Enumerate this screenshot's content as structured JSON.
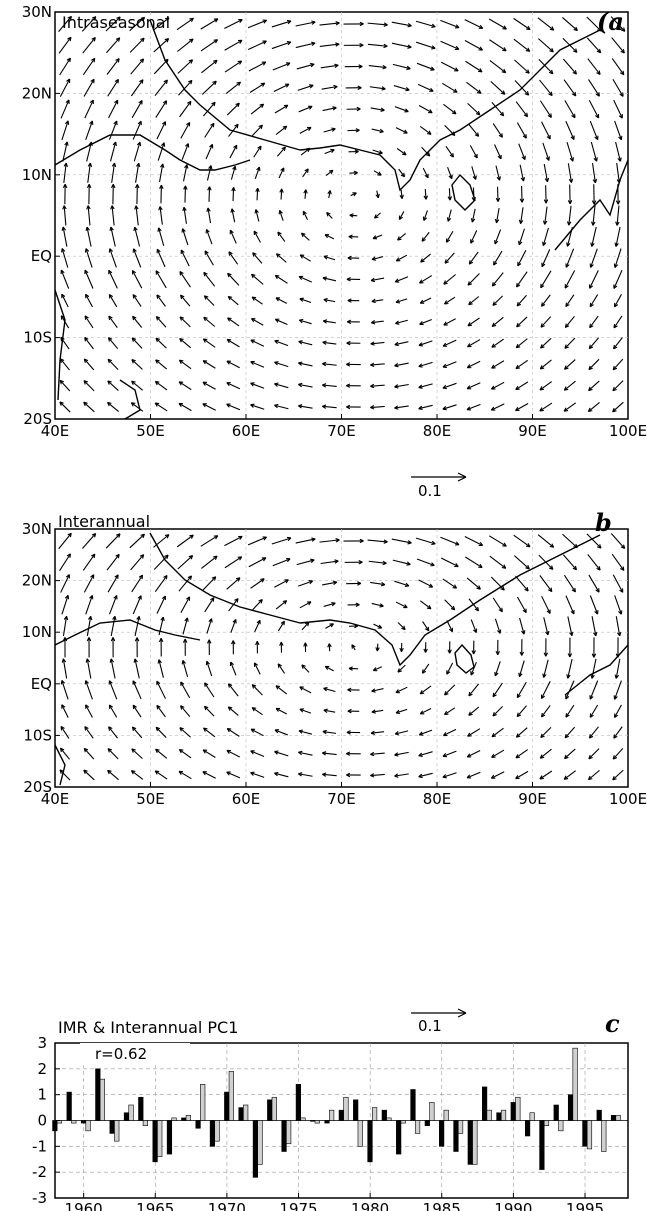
{
  "chart_data": [
    {
      "type": "vector-map",
      "panel_label": "(a",
      "title": "Intraseasonal",
      "x_ticks": [
        "40E",
        "50E",
        "60E",
        "70E",
        "80E",
        "90E",
        "100E"
      ],
      "y_ticks": [
        "30N",
        "20N",
        "10N",
        "EQ",
        "10S",
        "20S"
      ],
      "xlim": [
        40,
        100
      ],
      "ylim": [
        -20,
        30
      ],
      "reference_vector_label": "0.1"
    },
    {
      "type": "vector-map",
      "panel_label": "b",
      "title": "Interannual",
      "x_ticks": [
        "40E",
        "50E",
        "60E",
        "70E",
        "80E",
        "90E",
        "100E"
      ],
      "y_ticks": [
        "30N",
        "20N",
        "10N",
        "EQ",
        "10S",
        "20S"
      ],
      "xlim": [
        40,
        100
      ],
      "ylim": [
        -20,
        30
      ],
      "reference_vector_label": "0.1"
    },
    {
      "type": "bar",
      "panel_label": "c",
      "title": "IMR & Interannual PC1",
      "annotation": "r=0.62",
      "x_ticks": [
        "1960",
        "1965",
        "1970",
        "1975",
        "1980",
        "1985",
        "1990",
        "1995"
      ],
      "y_ticks": [
        "3",
        "2",
        "1",
        "0",
        "-1",
        "-2",
        "-3"
      ],
      "ylim": [
        -3,
        3
      ],
      "xlim": [
        1958,
        1998
      ],
      "years": [
        1958,
        1959,
        1960,
        1961,
        1962,
        1963,
        1964,
        1965,
        1966,
        1967,
        1968,
        1969,
        1970,
        1971,
        1972,
        1973,
        1974,
        1975,
        1976,
        1977,
        1978,
        1979,
        1980,
        1981,
        1982,
        1983,
        1984,
        1985,
        1986,
        1987,
        1988,
        1989,
        1990,
        1991,
        1992,
        1993,
        1994,
        1995,
        1996,
        1997
      ],
      "series": [
        {
          "values": [
            -0.4,
            1.1,
            -0.1,
            2.0,
            -0.5,
            0.3,
            0.9,
            -1.6,
            -1.3,
            0.1,
            -0.3,
            -1.0,
            1.1,
            0.5,
            -2.2,
            0.8,
            -1.2,
            1.4,
            0.0,
            -0.1,
            0.4,
            0.8,
            -1.6,
            0.4,
            -1.3,
            1.2,
            -0.2,
            -1.0,
            -1.2,
            -1.7,
            1.3,
            0.3,
            0.7,
            -0.6,
            -1.9,
            0.6,
            1.0,
            -1.0,
            0.4,
            0.2
          ]
        },
        {
          "values": [
            -0.1,
            -0.1,
            -0.4,
            1.6,
            -0.8,
            0.6,
            -0.2,
            -1.4,
            0.1,
            0.2,
            1.4,
            -0.8,
            1.9,
            0.6,
            -1.7,
            0.9,
            -0.9,
            0.1,
            -0.1,
            0.4,
            0.9,
            -1.0,
            0.5,
            0.1,
            -0.1,
            -0.5,
            0.7,
            0.4,
            -0.5,
            -1.7,
            0.4,
            0.4,
            0.9,
            0.3,
            -0.2,
            -0.4,
            2.8,
            -1.1,
            -1.2,
            0.2
          ]
        }
      ]
    }
  ]
}
